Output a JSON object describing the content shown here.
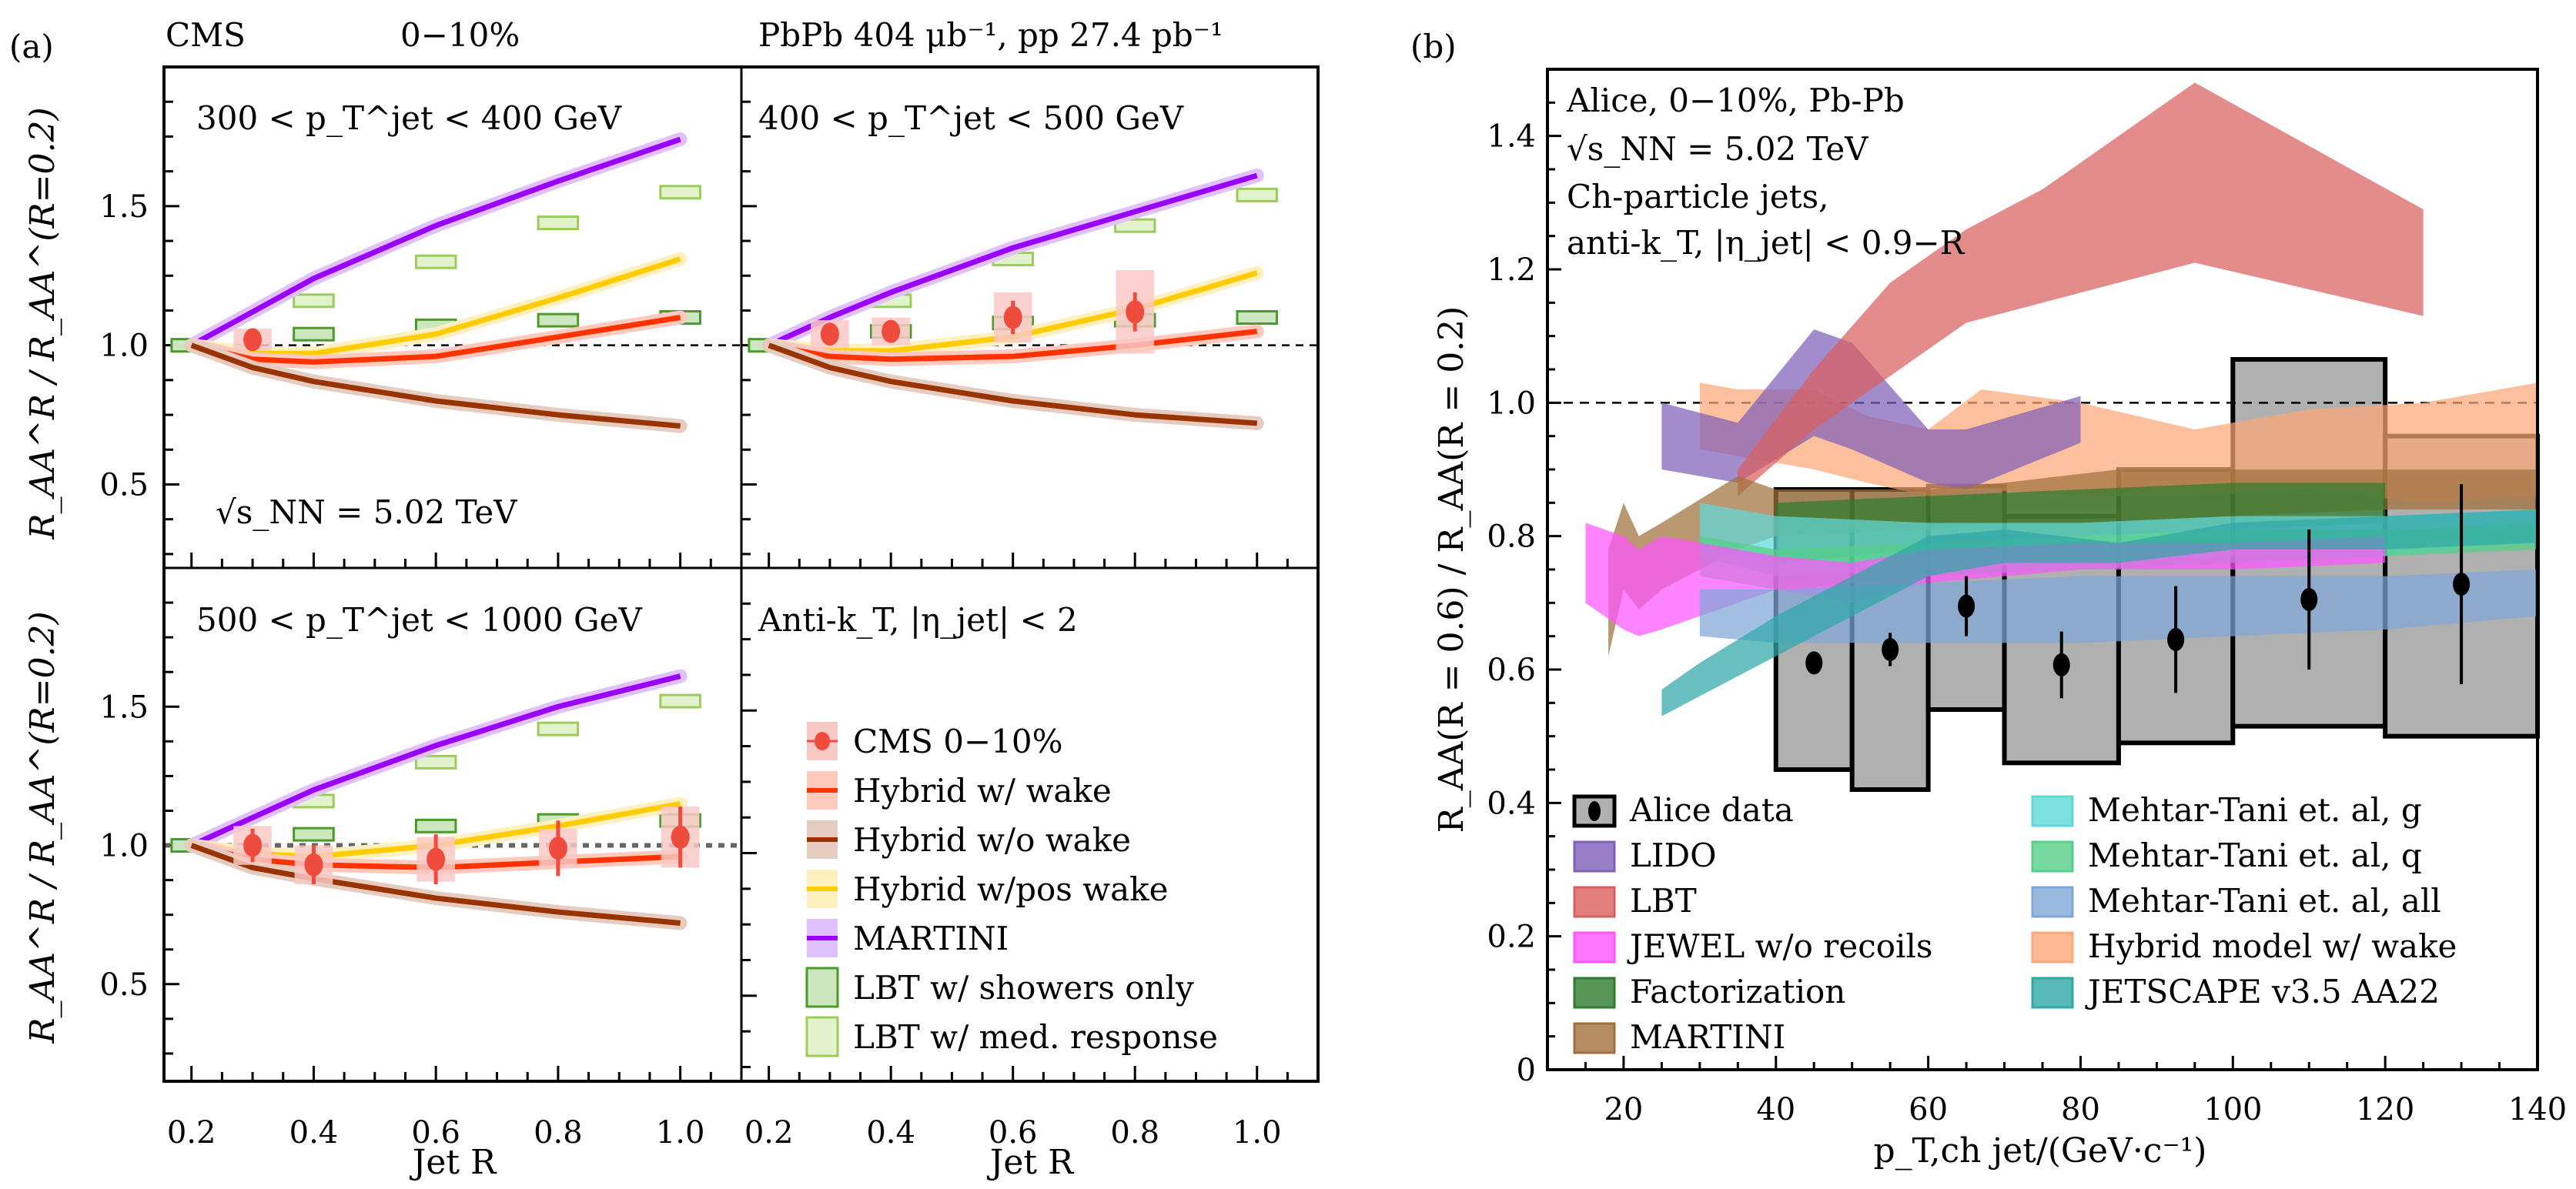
{
  "figure": {
    "panel_a_label": "(a)",
    "panel_b_label": "(b)",
    "header_left": "CMS",
    "header_centrality": "0−10%",
    "header_right": "PbPb 404 μb⁻¹, pp 27.4 pb⁻¹"
  },
  "colors": {
    "cms": "#f04c3e",
    "cms_box": "#f9c9c6",
    "hybrid_wake": "#ff3300",
    "hybrid_wake_band": "#ffc9bd",
    "hybrid_nowake": "#993300",
    "hybrid_nowake_band": "#e5cbc0",
    "hybrid_pos": "#ffcc00",
    "hybrid_pos_band": "#fff0c0",
    "martini_a": "#9900ff",
    "martini_a_band": "#e0c0ff",
    "lbt_showers_edge": "#4c9a2a",
    "lbt_showers_fill": "#cce6c0",
    "lbt_med_edge": "#9ccc5c",
    "lbt_med_fill": "#e2f2cc",
    "alice_box": "#b0b0b0",
    "lido": "#8060b8",
    "lbt_b": "#d95f5f",
    "jewel": "#ff55ff",
    "factorization": "#2e7d2e",
    "martini_b": "#a0703c",
    "mt_g": "#5fd8d8",
    "mt_q": "#55d088",
    "mt_all": "#7fa8d8",
    "hybrid_b": "#fca878",
    "jetscape": "#30a8a8"
  },
  "chart_data": [
    {
      "type": "line",
      "panel": "a-top-left",
      "title": "300 < p_T^jet < 400 GeV",
      "annotation": "√s_NN = 5.02 TeV",
      "xlabel": "",
      "ylabel": "R_AA^R / R_AA^(R=0.2)",
      "xlim": [
        0.155,
        1.1
      ],
      "ylim": [
        0.2,
        2.0
      ],
      "xticks": [
        0.2,
        0.4,
        0.6,
        0.8,
        1.0
      ],
      "yticks": [
        0.5,
        1.0,
        1.5
      ],
      "ytick_labels": [
        "0.5",
        "1.0",
        "1.5"
      ],
      "reference_line": 1.0,
      "series": [
        {
          "name": "MARTINI",
          "key": "martini",
          "x": [
            0.2,
            0.3,
            0.4,
            0.6,
            0.8,
            1.0
          ],
          "y": [
            1.0,
            1.12,
            1.24,
            1.43,
            1.59,
            1.74
          ]
        },
        {
          "name": "Hybrid w/pos wake",
          "key": "hybrid_pos",
          "x": [
            0.2,
            0.3,
            0.4,
            0.6,
            0.8,
            1.0
          ],
          "y": [
            1.0,
            0.97,
            0.97,
            1.04,
            1.17,
            1.31
          ]
        },
        {
          "name": "Hybrid w/ wake",
          "key": "hybrid_wake",
          "x": [
            0.2,
            0.3,
            0.4,
            0.6,
            0.8,
            1.0
          ],
          "y": [
            1.0,
            0.95,
            0.94,
            0.96,
            1.03,
            1.1
          ]
        },
        {
          "name": "Hybrid w/o wake",
          "key": "hybrid_nowake",
          "x": [
            0.2,
            0.3,
            0.4,
            0.6,
            0.8,
            1.0
          ],
          "y": [
            1.0,
            0.92,
            0.87,
            0.8,
            0.75,
            0.71
          ]
        }
      ],
      "lbt_showers": {
        "x": [
          0.2,
          0.4,
          0.6,
          0.8,
          1.0
        ],
        "y": [
          1.0,
          1.04,
          1.07,
          1.09,
          1.1
        ]
      },
      "lbt_med": {
        "x": [
          0.2,
          0.4,
          0.6,
          0.8,
          1.0
        ],
        "y": [
          1.0,
          1.16,
          1.3,
          1.44,
          1.55
        ]
      },
      "cms": [
        {
          "x": 0.3,
          "y": 1.02,
          "err": 0.02,
          "sys": 0.04
        }
      ]
    },
    {
      "type": "line",
      "panel": "a-top-right",
      "title": "400 < p_T^jet < 500 GeV",
      "xlim": [
        0.155,
        1.1
      ],
      "ylim": [
        0.2,
        2.0
      ],
      "xticks": [
        0.2,
        0.4,
        0.6,
        0.8,
        1.0
      ],
      "reference_line": 1.0,
      "series": [
        {
          "name": "MARTINI",
          "key": "martini",
          "x": [
            0.2,
            0.3,
            0.4,
            0.6,
            0.8,
            1.0
          ],
          "y": [
            1.0,
            1.1,
            1.19,
            1.35,
            1.48,
            1.61
          ]
        },
        {
          "name": "Hybrid w/pos wake",
          "key": "hybrid_pos",
          "x": [
            0.2,
            0.3,
            0.4,
            0.6,
            0.8,
            1.0
          ],
          "y": [
            1.0,
            0.98,
            0.98,
            1.03,
            1.13,
            1.26
          ]
        },
        {
          "name": "Hybrid w/ wake",
          "key": "hybrid_wake",
          "x": [
            0.2,
            0.3,
            0.4,
            0.6,
            0.8,
            1.0
          ],
          "y": [
            1.0,
            0.96,
            0.95,
            0.96,
            1.0,
            1.05
          ]
        },
        {
          "name": "Hybrid w/o wake",
          "key": "hybrid_nowake",
          "x": [
            0.2,
            0.3,
            0.4,
            0.6,
            0.8,
            1.0
          ],
          "y": [
            1.0,
            0.92,
            0.87,
            0.8,
            0.75,
            0.72
          ]
        }
      ],
      "lbt_showers": {
        "x": [
          0.2,
          0.4,
          0.6,
          0.8,
          1.0
        ],
        "y": [
          1.0,
          1.05,
          1.08,
          1.09,
          1.1
        ]
      },
      "lbt_med": {
        "x": [
          0.2,
          0.4,
          0.6,
          0.8,
          1.0
        ],
        "y": [
          1.0,
          1.16,
          1.31,
          1.43,
          1.54
        ]
      },
      "cms": [
        {
          "x": 0.3,
          "y": 1.04,
          "err": 0.03,
          "sys": 0.05
        },
        {
          "x": 0.4,
          "y": 1.05,
          "err": 0.04,
          "sys": 0.05
        },
        {
          "x": 0.6,
          "y": 1.1,
          "err": 0.06,
          "sys": 0.09
        },
        {
          "x": 0.8,
          "y": 1.12,
          "err": 0.07,
          "sys": 0.15
        }
      ]
    },
    {
      "type": "line",
      "panel": "a-bottom-left",
      "title": "500 < p_T^jet < 1000 GeV",
      "xlabel": "Jet R",
      "ylabel": "R_AA^R / R_AA^(R=0.2)",
      "xlim": [
        0.155,
        1.1
      ],
      "ylim": [
        0.15,
        2.0
      ],
      "xticks": [
        0.2,
        0.4,
        0.6,
        0.8,
        1.0
      ],
      "xtick_labels": [
        "0.2",
        "0.4",
        "0.6",
        "0.8",
        "1.0"
      ],
      "yticks": [
        0.5,
        1.0,
        1.5
      ],
      "ytick_labels": [
        "0.5",
        "1.0",
        "1.5"
      ],
      "reference_line": 1.0,
      "series": [
        {
          "name": "MARTINI",
          "key": "martini",
          "x": [
            0.2,
            0.3,
            0.4,
            0.6,
            0.8,
            1.0
          ],
          "y": [
            1.0,
            1.1,
            1.2,
            1.36,
            1.5,
            1.61
          ]
        },
        {
          "name": "Hybrid w/pos wake",
          "key": "hybrid_pos",
          "x": [
            0.2,
            0.3,
            0.4,
            0.6,
            0.8,
            1.0
          ],
          "y": [
            1.0,
            0.97,
            0.96,
            1.0,
            1.07,
            1.15
          ]
        },
        {
          "name": "Hybrid w/ wake",
          "key": "hybrid_wake",
          "x": [
            0.2,
            0.3,
            0.4,
            0.6,
            0.8,
            1.0
          ],
          "y": [
            1.0,
            0.95,
            0.93,
            0.92,
            0.94,
            0.96
          ]
        },
        {
          "name": "Hybrid w/o wake",
          "key": "hybrid_nowake",
          "x": [
            0.2,
            0.3,
            0.4,
            0.6,
            0.8,
            1.0
          ],
          "y": [
            1.0,
            0.92,
            0.88,
            0.81,
            0.76,
            0.72
          ]
        }
      ],
      "lbt_showers": {
        "x": [
          0.2,
          0.4,
          0.6,
          0.8,
          1.0
        ],
        "y": [
          1.0,
          1.04,
          1.07,
          1.09,
          1.09
        ]
      },
      "lbt_med": {
        "x": [
          0.2,
          0.4,
          0.6,
          0.8,
          1.0
        ],
        "y": [
          1.0,
          1.16,
          1.3,
          1.42,
          1.52
        ]
      },
      "cms": [
        {
          "x": 0.3,
          "y": 1.0,
          "err": 0.06,
          "sys": 0.07
        },
        {
          "x": 0.4,
          "y": 0.93,
          "err": 0.07,
          "sys": 0.07
        },
        {
          "x": 0.6,
          "y": 0.95,
          "err": 0.09,
          "sys": 0.08
        },
        {
          "x": 0.8,
          "y": 0.99,
          "err": 0.1,
          "sys": 0.07
        },
        {
          "x": 1.0,
          "y": 1.03,
          "err": 0.11,
          "sys": 0.11
        }
      ]
    },
    {
      "type": "legend",
      "panel": "a-bottom-right",
      "title": "Anti-k_T, |η_jet| < 2",
      "xlabel": "Jet R",
      "xlim": [
        0.155,
        1.1
      ],
      "xticks": [
        0.2,
        0.4,
        0.6,
        0.8,
        1.0
      ],
      "xtick_labels": [
        "0.2",
        "0.4",
        "0.6",
        "0.8",
        "1.0"
      ],
      "legend": [
        {
          "label": "CMS 0−10%",
          "key": "cms",
          "kind": "marker"
        },
        {
          "label": "Hybrid w/ wake",
          "key": "hybrid_wake",
          "kind": "line"
        },
        {
          "label": "Hybrid w/o wake",
          "key": "hybrid_nowake",
          "kind": "line"
        },
        {
          "label": "Hybrid w/pos wake",
          "key": "hybrid_pos",
          "kind": "line"
        },
        {
          "label": "MARTINI",
          "key": "martini_a",
          "kind": "line"
        },
        {
          "label": "LBT w/ showers only",
          "key": "lbt_showers",
          "kind": "box"
        },
        {
          "label": "LBT w/ med. response",
          "key": "lbt_med",
          "kind": "box"
        }
      ]
    },
    {
      "type": "area",
      "panel": "b",
      "annotation_lines": [
        "Alice, 0−10%, Pb-Pb",
        "√s_NN = 5.02 TeV",
        "Ch-particle jets,",
        "anti-k_T, |η_jet| < 0.9−R"
      ],
      "xlabel": "p_T,ch jet/(GeV·c⁻¹)",
      "ylabel": "R_AA(R = 0.6) / R_AA(R = 0.2)",
      "xlim": [
        10,
        140
      ],
      "ylim": [
        0,
        1.5
      ],
      "xticks": [
        20,
        40,
        60,
        80,
        100,
        120,
        140
      ],
      "xtick_labels": [
        "20",
        "40",
        "60",
        "80",
        "100",
        "120",
        "140"
      ],
      "yticks": [
        0,
        0.2,
        0.4,
        0.6,
        0.8,
        1.0,
        1.2,
        1.4
      ],
      "ytick_labels": [
        "0",
        "0.2",
        "0.4",
        "0.6",
        "0.8",
        "1.0",
        "1.2",
        "1.4"
      ],
      "reference_line": 1.0,
      "alice_data": [
        {
          "x": 45,
          "xlo": 40,
          "xhi": 50,
          "y": 0.61,
          "err": 0.01,
          "sys_lo": 0.45,
          "sys_hi": 0.87
        },
        {
          "x": 55,
          "xlo": 50,
          "xhi": 60,
          "y": 0.63,
          "err": 0.025,
          "sys_lo": 0.42,
          "sys_hi": 0.87
        },
        {
          "x": 65,
          "xlo": 60,
          "xhi": 70,
          "y": 0.695,
          "err": 0.045,
          "sys_lo": 0.54,
          "sys_hi": 0.875
        },
        {
          "x": 77.5,
          "xlo": 70,
          "xhi": 85,
          "y": 0.607,
          "err": 0.05,
          "sys_lo": 0.46,
          "sys_hi": 0.83
        },
        {
          "x": 92.5,
          "xlo": 85,
          "xhi": 100,
          "y": 0.645,
          "err": 0.08,
          "sys_lo": 0.49,
          "sys_hi": 0.9
        },
        {
          "x": 110,
          "xlo": 100,
          "xhi": 120,
          "y": 0.705,
          "err": 0.105,
          "sys_lo": 0.515,
          "sys_hi": 1.065
        },
        {
          "x": 130,
          "xlo": 120,
          "xhi": 140,
          "y": 0.728,
          "err": 0.15,
          "sys_lo": 0.5,
          "sys_hi": 0.95
        }
      ],
      "bands": [
        {
          "name": "Hybrid model w/ wake",
          "key": "hybrid_b",
          "x": [
            30,
            35,
            45,
            52,
            60,
            67,
            80,
            95,
            110,
            125,
            140
          ],
          "lo": [
            0.93,
            0.92,
            0.9,
            0.88,
            0.86,
            0.87,
            0.86,
            0.86,
            0.87,
            0.85,
            0.86
          ],
          "hi": [
            1.03,
            1.02,
            1.02,
            0.98,
            0.96,
            1.02,
            1.0,
            0.96,
            0.99,
            1.0,
            1.03
          ]
        },
        {
          "name": "LIDO",
          "key": "lido",
          "x": [
            25,
            35,
            45,
            50,
            60,
            65,
            80
          ],
          "lo": [
            0.9,
            0.88,
            0.95,
            0.93,
            0.88,
            0.87,
            0.94
          ],
          "hi": [
            1.0,
            0.97,
            1.11,
            1.09,
            0.96,
            0.96,
            1.01
          ]
        },
        {
          "name": "LBT",
          "key": "lbt_b",
          "x": [
            35,
            45,
            55,
            65,
            75,
            95,
            125
          ],
          "lo": [
            0.86,
            0.96,
            1.04,
            1.12,
            1.15,
            1.21,
            1.13
          ],
          "hi": [
            0.9,
            1.05,
            1.18,
            1.26,
            1.32,
            1.48,
            1.29
          ]
        },
        {
          "name": "MARTINI",
          "key": "martini_b",
          "x": [
            18,
            20,
            22,
            25,
            35,
            40,
            60,
            70,
            85,
            100,
            120,
            140
          ],
          "lo": [
            0.62,
            0.72,
            0.69,
            0.72,
            0.78,
            0.8,
            0.81,
            0.82,
            0.82,
            0.83,
            0.84,
            0.84
          ],
          "hi": [
            0.78,
            0.85,
            0.8,
            0.82,
            0.89,
            0.87,
            0.87,
            0.88,
            0.9,
            0.9,
            0.9,
            0.9
          ]
        },
        {
          "name": "Factorization",
          "key": "factorization",
          "x": [
            40,
            60,
            80,
            100,
            120
          ],
          "lo": [
            0.76,
            0.78,
            0.8,
            0.81,
            0.82
          ],
          "hi": [
            0.85,
            0.86,
            0.87,
            0.88,
            0.88
          ]
        },
        {
          "name": "Mehtar-Tani et. al, g",
          "key": "mt_g",
          "x": [
            30,
            40,
            60,
            80,
            100,
            120,
            140
          ],
          "lo": [
            0.77,
            0.74,
            0.75,
            0.76,
            0.77,
            0.77,
            0.79
          ],
          "hi": [
            0.85,
            0.83,
            0.82,
            0.82,
            0.83,
            0.83,
            0.84
          ]
        },
        {
          "name": "Mehtar-Tani et. al, q",
          "key": "mt_q",
          "x": [
            30,
            40,
            60,
            80,
            100,
            120,
            140
          ],
          "lo": [
            0.74,
            0.72,
            0.74,
            0.75,
            0.76,
            0.77,
            0.78
          ],
          "hi": [
            0.8,
            0.78,
            0.79,
            0.8,
            0.81,
            0.81,
            0.82
          ]
        },
        {
          "name": "JEWEL w/o recoils",
          "key": "jewel",
          "x": [
            15,
            20,
            22,
            25,
            40,
            50,
            60,
            80,
            100,
            120
          ],
          "lo": [
            0.7,
            0.66,
            0.65,
            0.66,
            0.72,
            0.7,
            0.73,
            0.75,
            0.75,
            0.76
          ],
          "hi": [
            0.82,
            0.8,
            0.78,
            0.8,
            0.77,
            0.76,
            0.78,
            0.79,
            0.79,
            0.8
          ]
        },
        {
          "name": "Mehtar-Tani et. al, all",
          "key": "mt_all",
          "x": [
            30,
            40,
            60,
            80,
            100,
            120,
            140
          ],
          "lo": [
            0.65,
            0.64,
            0.64,
            0.64,
            0.65,
            0.66,
            0.68
          ],
          "hi": [
            0.72,
            0.72,
            0.73,
            0.74,
            0.74,
            0.74,
            0.75
          ]
        },
        {
          "name": "JETSCAPE v3.5 AA22",
          "key": "jetscape",
          "x": [
            25,
            30,
            40,
            50,
            60,
            70,
            85,
            100,
            120,
            140
          ],
          "lo": [
            0.53,
            0.56,
            0.62,
            0.68,
            0.74,
            0.76,
            0.76,
            0.78,
            0.78,
            0.79
          ],
          "hi": [
            0.57,
            0.61,
            0.68,
            0.74,
            0.8,
            0.81,
            0.79,
            0.82,
            0.83,
            0.84
          ]
        }
      ],
      "legend": [
        {
          "label": "Alice data",
          "key": "alice_box",
          "kind": "data"
        },
        {
          "label": "LIDO",
          "key": "lido"
        },
        {
          "label": "LBT",
          "key": "lbt_b"
        },
        {
          "label": "JEWEL w/o recoils",
          "key": "jewel"
        },
        {
          "label": "Factorization",
          "key": "factorization"
        },
        {
          "label": "MARTINI",
          "key": "martini_b"
        },
        {
          "label": "Mehtar-Tani et. al, g",
          "key": "mt_g"
        },
        {
          "label": "Mehtar-Tani et. al, q",
          "key": "mt_q"
        },
        {
          "label": "Mehtar-Tani et. al, all",
          "key": "mt_all"
        },
        {
          "label": "Hybrid model w/ wake",
          "key": "hybrid_b"
        },
        {
          "label": "JETSCAPE v3.5 AA22",
          "key": "jetscape"
        }
      ]
    }
  ]
}
